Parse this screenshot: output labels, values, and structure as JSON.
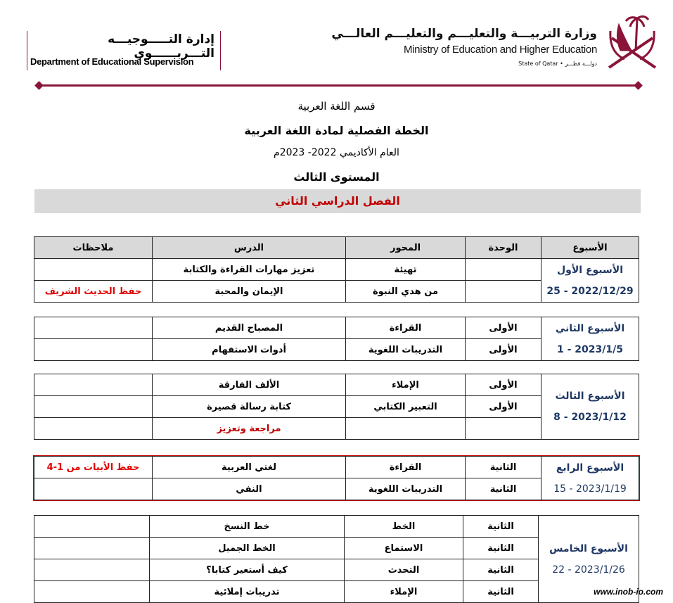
{
  "header": {
    "ministry_ar": "وزارة التربيـــة والتعليـــم والتعليـــم العالـــي",
    "ministry_en": "Ministry of Education and Higher Education",
    "state": "State of Qatar • دولـــة قطـــر",
    "dept_ar": "إدارة التـــــوجيـــه التـــربــــــوي",
    "dept_en": "Department of Educational Supervision",
    "brand_color": "#8a1538"
  },
  "titles": {
    "department": "قسم اللغة العربية",
    "plan": "الخطة الفصلية لمادة اللغة العربية",
    "year": "العام الأكاديمي 2022- 2023م",
    "level": "المستوى الثالث",
    "semester": "الفصل الدراسي الثاني"
  },
  "columns": [
    "الأسبوع",
    "الوحدة",
    "المحور",
    "الدرس",
    "ملاحظات"
  ],
  "weeks": [
    {
      "name": "الأسبوع الأول",
      "dates": "25 - 2022/12/29",
      "rows": [
        {
          "unit": "",
          "axis": "تهيئة",
          "lesson": "تعزيز مهارات القراءة والكتابة",
          "notes": ""
        },
        {
          "unit": "",
          "axis": "من هدي النبوة",
          "lesson": "الإيمان والمحبة",
          "notes": "حفظ الحديث الشريف"
        }
      ]
    },
    {
      "name": "الأسبوع الثاني",
      "dates": "1 - 2023/1/5",
      "rows": [
        {
          "unit": "الأولى",
          "axis": "القراءة",
          "lesson": "المصباح القديم",
          "notes": ""
        },
        {
          "unit": "الأولى",
          "axis": "التدريبات اللغوية",
          "lesson": "أدوات الاستفهام",
          "notes": ""
        }
      ]
    },
    {
      "name": "الأسبوع الثالث",
      "dates": "8 - 2023/1/12",
      "rows": [
        {
          "unit": "الأولى",
          "axis": "الإملاء",
          "lesson": "الألف الفارقة",
          "notes": ""
        },
        {
          "unit": "الأولى",
          "axis": "التعبير الكتابي",
          "lesson": "كتابة رسالة قصيرة",
          "notes": ""
        },
        {
          "unit": "",
          "axis": "",
          "lesson": "مراجعة وتعزيز",
          "notes": "",
          "lesson_color": "#c00000"
        }
      ]
    },
    {
      "name": "الأسبوع الرابع",
      "dates": "15 - 2023/1/19",
      "rows": [
        {
          "unit": "الثانية",
          "axis": "القراءة",
          "lesson": "لغتي العربية",
          "notes": "حفظ الأبيات من 1-4"
        },
        {
          "unit": "الثانية",
          "axis": "التدريبات اللغوية",
          "lesson": "النفي",
          "notes": ""
        }
      ]
    },
    {
      "name": "الأسبوع الخامس",
      "dates": "22 - 2023/1/26",
      "rows": [
        {
          "unit": "الثانية",
          "axis": "الخط",
          "lesson": "خط النسخ",
          "notes": ""
        },
        {
          "unit": "الثانية",
          "axis": "الاستماع",
          "lesson": "الخط الجميل",
          "notes": ""
        },
        {
          "unit": "الثانية",
          "axis": "التحدث",
          "lesson": "كيف أستعير كتابا؟",
          "notes": ""
        },
        {
          "unit": "الثانية",
          "axis": "الإملاء",
          "lesson": "تدريبات إملائية",
          "notes": ""
        }
      ]
    }
  ],
  "watermark": "www.inob-io.com"
}
